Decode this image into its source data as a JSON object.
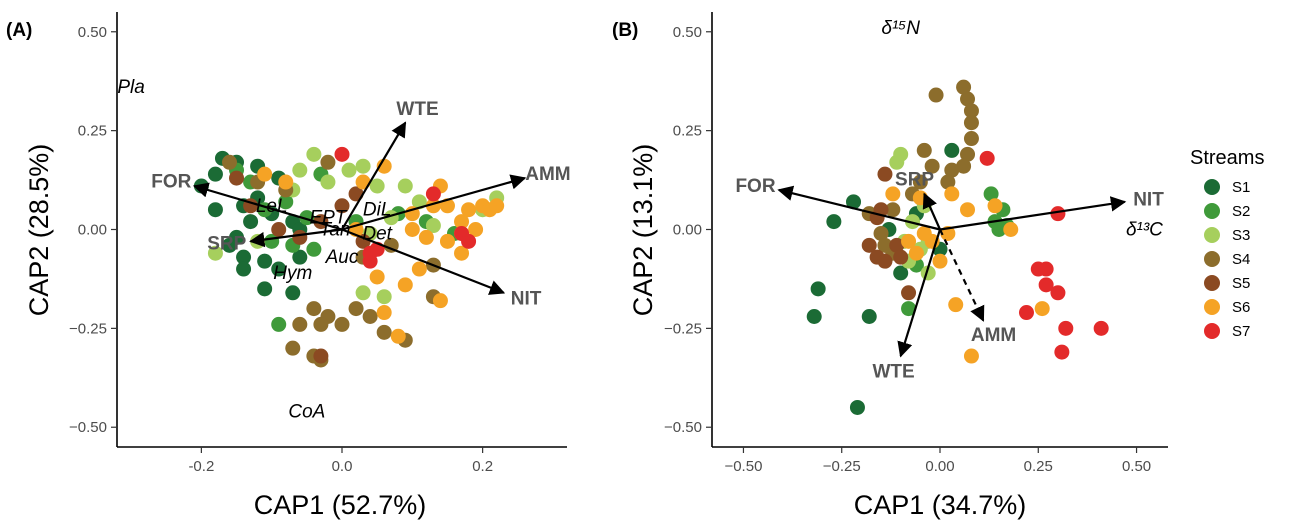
{
  "figure": {
    "panels": [
      {
        "id": "A",
        "label": "(A)",
        "xlabel": "CAP1 (52.7%)",
        "ylabel": "CAP2 (28.5%)"
      },
      {
        "id": "B",
        "label": "(B)",
        "xlabel": "CAP1 (34.7%)",
        "ylabel": "CAP2 (13.1%)"
      }
    ],
    "legend": {
      "title": "Streams",
      "items": [
        {
          "name": "S1",
          "color": "#1b6b35"
        },
        {
          "name": "S2",
          "color": "#3f9a3a"
        },
        {
          "name": "S3",
          "color": "#a6cf5d"
        },
        {
          "name": "S4",
          "color": "#8c6d2c"
        },
        {
          "name": "S5",
          "color": "#8b4a22"
        },
        {
          "name": "S6",
          "color": "#f5a325"
        },
        {
          "name": "S7",
          "color": "#e32a2a"
        }
      ]
    }
  },
  "chart_data": [
    {
      "type": "scatter",
      "panel": "A",
      "xlabel": "CAP1 (52.7%)",
      "ylabel": "CAP2 (28.5%)",
      "xlim": [
        -0.32,
        0.32
      ],
      "ylim": [
        -0.55,
        0.55
      ],
      "xticks": [
        -0.2,
        0.0,
        0.2
      ],
      "xtick_labels": [
        "-0.2",
        "0.0",
        "0.2"
      ],
      "yticks": [
        0.5,
        0.25,
        0.0,
        -0.25,
        -0.5
      ],
      "ytick_labels": [
        "0.50",
        "0.25",
        "0.00",
        "−0.25",
        "−0.50"
      ],
      "grid": false,
      "vectors": [
        {
          "label": "WTE",
          "x": 0.09,
          "y": 0.27,
          "dashed": false
        },
        {
          "label": "AMM",
          "x": 0.26,
          "y": 0.13,
          "dashed": false
        },
        {
          "label": "FOR",
          "x": -0.21,
          "y": 0.11,
          "dashed": false
        },
        {
          "label": "SRP",
          "x": -0.13,
          "y": -0.03,
          "dashed": false
        },
        {
          "label": "NIT",
          "x": 0.23,
          "y": -0.16,
          "dashed": false
        }
      ],
      "species": [
        {
          "label": "Pla",
          "x": -0.3,
          "y": 0.36
        },
        {
          "label": "LeL",
          "x": -0.1,
          "y": 0.06
        },
        {
          "label": "EPT",
          "x": -0.02,
          "y": 0.03
        },
        {
          "label": "DiL",
          "x": 0.05,
          "y": 0.05
        },
        {
          "label": "Tan",
          "x": -0.01,
          "y": 0.0
        },
        {
          "label": "Det",
          "x": 0.05,
          "y": -0.01
        },
        {
          "label": "Auc",
          "x": 0.0,
          "y": -0.07
        },
        {
          "label": "Hym",
          "x": -0.07,
          "y": -0.11
        },
        {
          "label": "CoA",
          "x": -0.05,
          "y": -0.46
        }
      ],
      "series": [
        {
          "name": "S1",
          "points": [
            [
              -0.17,
              0.18
            ],
            [
              -0.15,
              0.17
            ],
            [
              -0.18,
              0.14
            ],
            [
              -0.2,
              0.11
            ],
            [
              -0.18,
              0.05
            ],
            [
              -0.14,
              0.06
            ],
            [
              -0.12,
              0.08
            ],
            [
              -0.1,
              0.04
            ],
            [
              -0.13,
              0.02
            ],
            [
              -0.07,
              0.02
            ],
            [
              -0.06,
              0.0
            ],
            [
              -0.15,
              -0.02
            ],
            [
              -0.14,
              -0.07
            ],
            [
              -0.11,
              -0.08
            ],
            [
              -0.09,
              -0.1
            ],
            [
              -0.06,
              -0.07
            ],
            [
              -0.14,
              -0.1
            ],
            [
              -0.11,
              -0.15
            ],
            [
              -0.07,
              -0.16
            ],
            [
              -0.16,
              -0.04
            ],
            [
              -0.12,
              0.16
            ],
            [
              -0.09,
              0.13
            ]
          ]
        },
        {
          "name": "S2",
          "points": [
            [
              -0.15,
              0.15
            ],
            [
              -0.13,
              0.12
            ],
            [
              -0.11,
              0.05
            ],
            [
              -0.08,
              0.07
            ],
            [
              -0.05,
              0.03
            ],
            [
              -0.03,
              0.14
            ],
            [
              -0.1,
              -0.03
            ],
            [
              -0.07,
              -0.04
            ],
            [
              0.08,
              0.04
            ],
            [
              0.12,
              0.02
            ],
            [
              0.16,
              -0.01
            ],
            [
              0.02,
              0.02
            ],
            [
              -0.04,
              -0.05
            ],
            [
              -0.09,
              -0.24
            ]
          ]
        },
        {
          "name": "S3",
          "points": [
            [
              -0.18,
              -0.06
            ],
            [
              -0.12,
              -0.03
            ],
            [
              -0.06,
              0.15
            ],
            [
              -0.04,
              0.19
            ],
            [
              -0.02,
              0.12
            ],
            [
              0.01,
              0.15
            ],
            [
              0.03,
              0.16
            ],
            [
              0.05,
              0.11
            ],
            [
              0.09,
              0.11
            ],
            [
              0.11,
              0.07
            ],
            [
              0.07,
              0.03
            ],
            [
              0.04,
              -0.01
            ],
            [
              0.06,
              -0.17
            ],
            [
              0.03,
              -0.16
            ],
            [
              0.22,
              0.08
            ],
            [
              0.2,
              0.05
            ],
            [
              0.13,
              0.01
            ],
            [
              -0.07,
              0.1
            ]
          ]
        },
        {
          "name": "S4",
          "points": [
            [
              -0.16,
              0.17
            ],
            [
              -0.12,
              0.12
            ],
            [
              -0.08,
              0.1
            ],
            [
              0.03,
              -0.07
            ],
            [
              0.07,
              -0.04
            ],
            [
              0.13,
              -0.09
            ],
            [
              -0.04,
              -0.2
            ],
            [
              -0.02,
              -0.22
            ],
            [
              0.0,
              -0.24
            ],
            [
              0.02,
              -0.2
            ],
            [
              0.04,
              -0.22
            ],
            [
              -0.06,
              -0.24
            ],
            [
              -0.03,
              -0.24
            ],
            [
              -0.04,
              -0.32
            ],
            [
              -0.03,
              -0.33
            ],
            [
              -0.07,
              -0.3
            ],
            [
              0.06,
              -0.26
            ],
            [
              0.09,
              -0.28
            ],
            [
              0.13,
              -0.17
            ],
            [
              -0.02,
              0.17
            ]
          ]
        },
        {
          "name": "S5",
          "points": [
            [
              -0.15,
              0.13
            ],
            [
              -0.13,
              0.06
            ],
            [
              -0.09,
              0.0
            ],
            [
              -0.03,
              0.02
            ],
            [
              0.0,
              0.06
            ],
            [
              0.02,
              0.09
            ],
            [
              0.03,
              -0.03
            ],
            [
              -0.06,
              -0.02
            ],
            [
              -0.03,
              -0.32
            ]
          ]
        },
        {
          "name": "S6",
          "points": [
            [
              -0.11,
              0.14
            ],
            [
              0.03,
              0.12
            ],
            [
              0.06,
              0.16
            ],
            [
              0.1,
              0.04
            ],
            [
              0.13,
              0.06
            ],
            [
              0.14,
              0.11
            ],
            [
              0.15,
              0.06
            ],
            [
              0.17,
              0.02
            ],
            [
              0.18,
              0.05
            ],
            [
              0.2,
              0.06
            ],
            [
              0.21,
              0.05
            ],
            [
              0.22,
              0.06
            ],
            [
              0.17,
              -0.01
            ],
            [
              0.19,
              0.0
            ],
            [
              0.12,
              -0.02
            ],
            [
              0.15,
              -0.03
            ],
            [
              0.09,
              -0.14
            ],
            [
              0.14,
              -0.18
            ],
            [
              0.11,
              -0.1
            ],
            [
              0.05,
              -0.12
            ],
            [
              0.06,
              -0.21
            ],
            [
              0.08,
              -0.27
            ],
            [
              0.17,
              -0.06
            ],
            [
              -0.08,
              0.12
            ],
            [
              0.02,
              0.0
            ],
            [
              0.1,
              0.0
            ]
          ]
        },
        {
          "name": "S7",
          "points": [
            [
              0.0,
              0.19
            ],
            [
              0.13,
              0.09
            ],
            [
              0.17,
              -0.01
            ],
            [
              0.18,
              -0.03
            ],
            [
              0.04,
              -0.08
            ],
            [
              0.04,
              -0.06
            ],
            [
              0.05,
              -0.05
            ]
          ]
        }
      ]
    },
    {
      "type": "scatter",
      "panel": "B",
      "xlabel": "CAP1 (34.7%)",
      "ylabel": "CAP2 (13.1%)",
      "xlim": [
        -0.58,
        0.58
      ],
      "ylim": [
        -0.55,
        0.55
      ],
      "xticks": [
        -0.5,
        -0.25,
        0.0,
        0.25,
        0.5
      ],
      "xtick_labels": [
        "−0.50",
        "−0.25",
        "0.00",
        "0.25",
        "0.50"
      ],
      "yticks": [
        0.5,
        0.25,
        0.0,
        -0.25,
        -0.5
      ],
      "ytick_labels": [
        "0.50",
        "0.25",
        "0.00",
        "−0.25",
        "−0.50"
      ],
      "grid": false,
      "vectors": [
        {
          "label": "FOR",
          "x": -0.41,
          "y": 0.1,
          "dashed": false
        },
        {
          "label": "SRP",
          "x": -0.04,
          "y": 0.09,
          "dashed": false
        },
        {
          "label": "NIT",
          "x": 0.47,
          "y": 0.07,
          "dashed": false
        },
        {
          "label": "WTE",
          "x": -0.1,
          "y": -0.32,
          "dashed": false
        },
        {
          "label": "AMM",
          "x": 0.11,
          "y": -0.23,
          "dashed": true
        }
      ],
      "species": [
        {
          "label": "δ¹⁵N",
          "x": -0.1,
          "y": 0.51
        },
        {
          "label": "δ¹³C",
          "x": 0.52,
          "y": 0.0
        }
      ],
      "series": [
        {
          "name": "S1",
          "points": [
            [
              -0.21,
              -0.45
            ],
            [
              -0.31,
              -0.15
            ],
            [
              -0.32,
              -0.22
            ],
            [
              -0.27,
              0.02
            ],
            [
              -0.18,
              -0.22
            ],
            [
              -0.22,
              0.07
            ],
            [
              0.03,
              0.2
            ],
            [
              -0.06,
              0.04
            ],
            [
              -0.13,
              0.0
            ],
            [
              -0.1,
              -0.11
            ],
            [
              0.0,
              -0.05
            ]
          ]
        },
        {
          "name": "S2",
          "points": [
            [
              0.13,
              0.09
            ],
            [
              0.16,
              0.05
            ],
            [
              0.17,
              0.01
            ],
            [
              0.14,
              0.02
            ],
            [
              0.15,
              0.0
            ],
            [
              -0.08,
              -0.2
            ],
            [
              -0.06,
              -0.09
            ]
          ]
        },
        {
          "name": "S3",
          "points": [
            [
              -0.1,
              0.19
            ],
            [
              -0.11,
              0.17
            ],
            [
              -0.04,
              0.06
            ],
            [
              -0.07,
              0.02
            ],
            [
              -0.03,
              -0.03
            ],
            [
              -0.05,
              -0.05
            ],
            [
              -0.03,
              -0.11
            ],
            [
              -0.08,
              -0.08
            ],
            [
              -0.09,
              -0.03
            ]
          ]
        },
        {
          "name": "S4",
          "points": [
            [
              -0.01,
              0.34
            ],
            [
              0.06,
              0.36
            ],
            [
              0.07,
              0.33
            ],
            [
              0.08,
              0.3
            ],
            [
              0.08,
              0.27
            ],
            [
              0.08,
              0.23
            ],
            [
              0.07,
              0.19
            ],
            [
              0.06,
              0.16
            ],
            [
              0.03,
              0.15
            ],
            [
              -0.02,
              0.16
            ],
            [
              -0.04,
              0.2
            ],
            [
              -0.05,
              0.12
            ],
            [
              -0.07,
              0.09
            ],
            [
              -0.12,
              0.05
            ],
            [
              -0.15,
              -0.01
            ],
            [
              -0.14,
              -0.04
            ],
            [
              -0.12,
              -0.06
            ],
            [
              0.02,
              0.12
            ],
            [
              -0.18,
              0.04
            ]
          ]
        },
        {
          "name": "S5",
          "points": [
            [
              -0.14,
              0.14
            ],
            [
              -0.15,
              0.05
            ],
            [
              -0.16,
              0.03
            ],
            [
              -0.18,
              -0.04
            ],
            [
              -0.16,
              -0.07
            ],
            [
              -0.14,
              -0.08
            ],
            [
              -0.11,
              -0.04
            ],
            [
              -0.08,
              -0.16
            ],
            [
              -0.1,
              -0.07
            ]
          ]
        },
        {
          "name": "S6",
          "points": [
            [
              -0.12,
              0.09
            ],
            [
              -0.05,
              0.08
            ],
            [
              0.03,
              0.09
            ],
            [
              0.07,
              0.05
            ],
            [
              0.14,
              0.06
            ],
            [
              0.18,
              0.0
            ],
            [
              -0.06,
              -0.06
            ],
            [
              -0.02,
              -0.03
            ],
            [
              0.0,
              -0.08
            ],
            [
              0.04,
              -0.19
            ],
            [
              0.08,
              -0.32
            ],
            [
              0.26,
              -0.2
            ],
            [
              -0.04,
              -0.01
            ],
            [
              0.02,
              -0.01
            ],
            [
              -0.08,
              -0.03
            ]
          ]
        },
        {
          "name": "S7",
          "points": [
            [
              0.12,
              0.18
            ],
            [
              0.3,
              0.04
            ],
            [
              0.25,
              -0.1
            ],
            [
              0.27,
              -0.1
            ],
            [
              0.27,
              -0.14
            ],
            [
              0.3,
              -0.16
            ],
            [
              0.22,
              -0.21
            ],
            [
              0.32,
              -0.25
            ],
            [
              0.31,
              -0.31
            ],
            [
              0.41,
              -0.25
            ]
          ]
        }
      ]
    }
  ]
}
